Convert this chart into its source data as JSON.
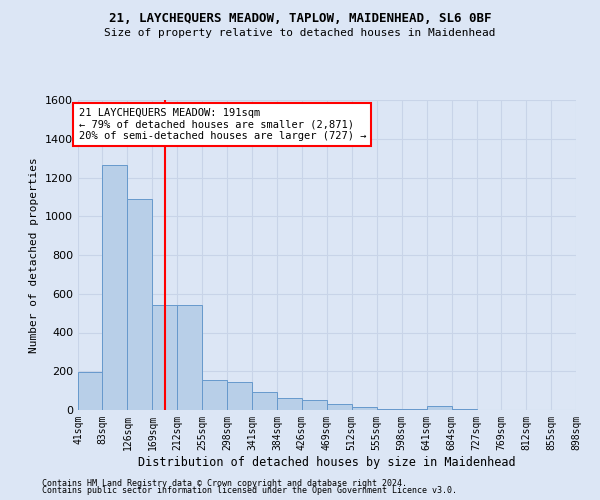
{
  "title1": "21, LAYCHEQUERS MEADOW, TAPLOW, MAIDENHEAD, SL6 0BF",
  "title2": "Size of property relative to detached houses in Maidenhead",
  "xlabel": "Distribution of detached houses by size in Maidenhead",
  "ylabel": "Number of detached properties",
  "footer1": "Contains HM Land Registry data © Crown copyright and database right 2024.",
  "footer2": "Contains public sector information licensed under the Open Government Licence v3.0.",
  "annotation_line1": "21 LAYCHEQUERS MEADOW: 191sqm",
  "annotation_line2": "← 79% of detached houses are smaller (2,871)",
  "annotation_line3": "20% of semi-detached houses are larger (727) →",
  "bar_color": "#b8cfe8",
  "bar_edge_color": "#6699cc",
  "grid_color": "#c8d4e8",
  "background_color": "#dce6f5",
  "property_line_x": 191,
  "bin_edges": [
    41,
    83,
    126,
    169,
    212,
    255,
    298,
    341,
    384,
    426,
    469,
    512,
    555,
    598,
    641,
    684,
    727,
    769,
    812,
    855,
    898
  ],
  "bin_labels": [
    "41sqm",
    "83sqm",
    "126sqm",
    "169sqm",
    "212sqm",
    "255sqm",
    "298sqm",
    "341sqm",
    "384sqm",
    "426sqm",
    "469sqm",
    "512sqm",
    "555sqm",
    "598sqm",
    "641sqm",
    "684sqm",
    "727sqm",
    "769sqm",
    "812sqm",
    "855sqm",
    "898sqm"
  ],
  "counts": [
    195,
    1265,
    1090,
    540,
    540,
    155,
    145,
    95,
    60,
    50,
    30,
    15,
    5,
    5,
    20,
    5,
    0,
    0,
    0,
    0
  ],
  "ylim": [
    0,
    1600
  ],
  "yticks": [
    0,
    200,
    400,
    600,
    800,
    1000,
    1200,
    1400,
    1600
  ]
}
